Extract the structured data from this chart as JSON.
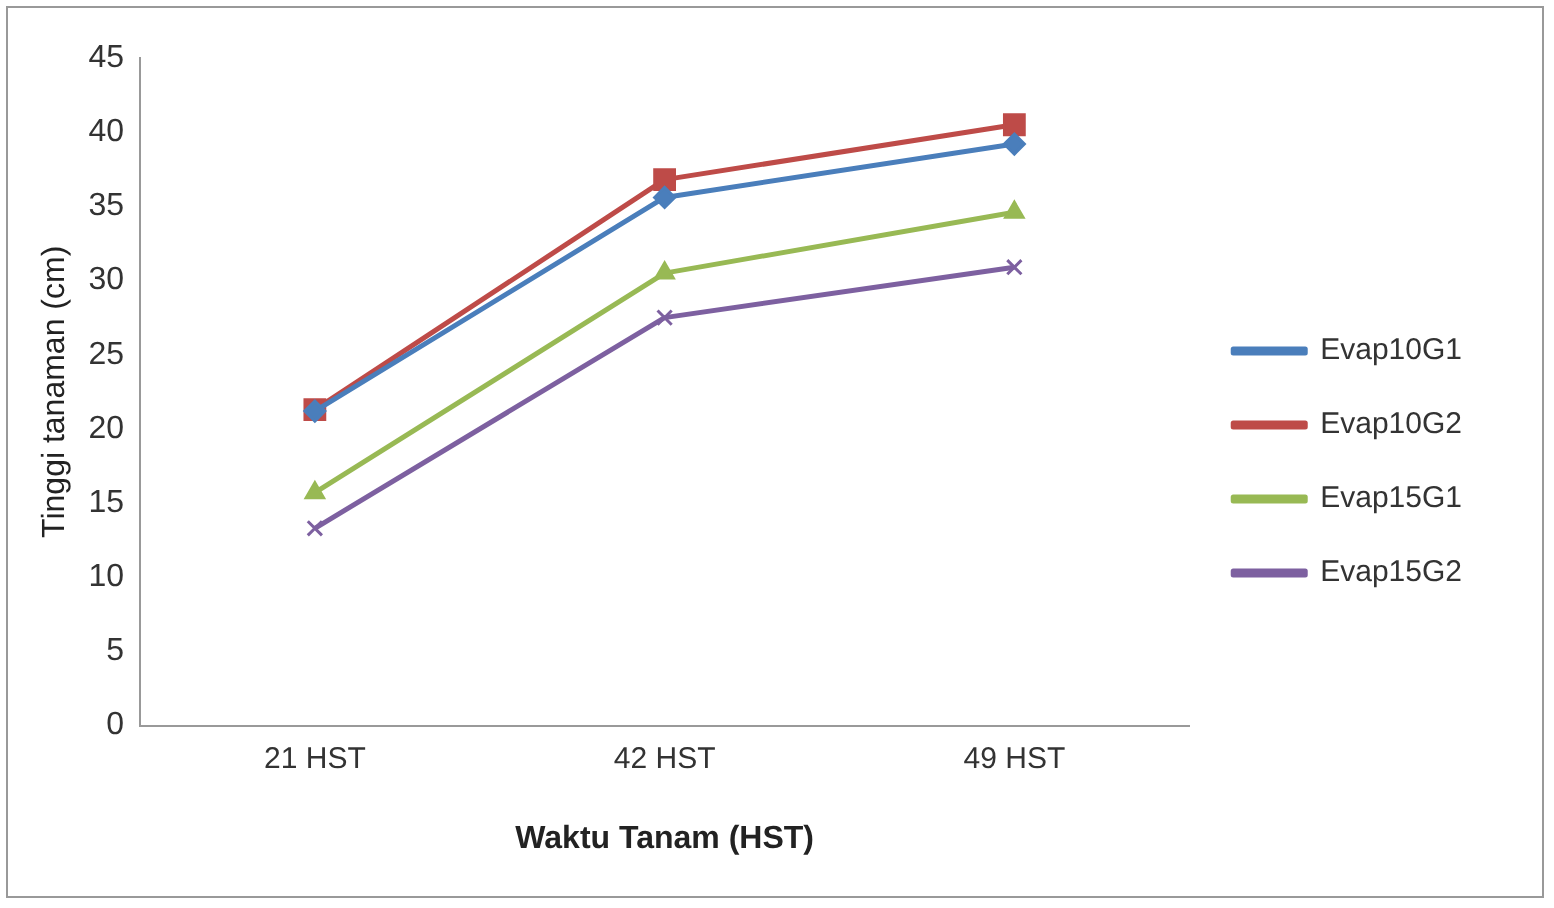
{
  "chart_data": {
    "type": "line",
    "xlabel": "Waktu Tanam (HST)",
    "ylabel": "Tinggi tanaman (cm)",
    "categories": [
      "21 HST",
      "42 HST",
      "49 HST"
    ],
    "series": [
      {
        "name": "Evap10G1",
        "color": "#4a7ebb",
        "marker": "diamond",
        "values": [
          21.2,
          35.6,
          39.2
        ]
      },
      {
        "name": "Evap10G2",
        "color": "#be4b48",
        "marker": "square",
        "values": [
          21.3,
          36.8,
          40.5
        ]
      },
      {
        "name": "Evap15G1",
        "color": "#98b954",
        "marker": "triangle",
        "values": [
          15.7,
          30.5,
          34.6
        ]
      },
      {
        "name": "Evap15G2",
        "color": "#7d60a0",
        "marker": "cross",
        "values": [
          13.3,
          27.5,
          30.9
        ]
      }
    ],
    "ylim": [
      0,
      45
    ],
    "yticks": [
      0,
      5,
      10,
      15,
      20,
      25,
      30,
      35,
      40,
      45
    ],
    "grid": false,
    "legend": "right"
  }
}
